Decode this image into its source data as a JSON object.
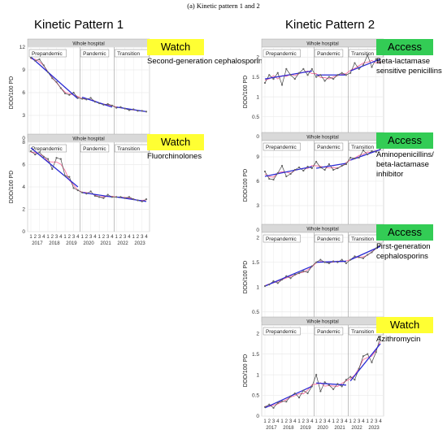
{
  "figure": {
    "caption": "(a) Kinetic pattern 1 and 2",
    "columns": [
      {
        "title": "Kinetic Pattern 1"
      },
      {
        "title": "Kinetic Pattern 2"
      }
    ]
  },
  "strip_label": "Whole hospital",
  "period_labels": [
    "Prepandemic",
    "Pandemic",
    "Transition"
  ],
  "quarter_labels": [
    "1",
    "2",
    "3",
    "4"
  ],
  "years": [
    "2017",
    "2018",
    "2019",
    "2020",
    "2021",
    "2022",
    "2023"
  ],
  "ylabel": "DDD/100 PD",
  "colors": {
    "watch": "#ffff33",
    "access": "#33cc55",
    "observed": "#444444",
    "points": "#666666",
    "smooth": "#ff6fa0",
    "fit": "#2a2ad4",
    "strip": "#d9d9d9",
    "grid": "#ebebeb"
  },
  "chart_data": [
    {
      "type": "line",
      "title": "Second-generation cephalosporins",
      "category": "Watch",
      "ylim": [
        0,
        12
      ],
      "yticks": [
        0,
        3,
        6,
        9,
        12
      ],
      "x_quarters": 28,
      "series": [
        {
          "values": [
            10.6,
            10.2,
            10.4,
            9.6,
            8.7,
            7.9,
            7.4,
            6.6,
            5.9,
            5.7,
            6.0,
            5.3,
            5.2,
            5.1,
            5.3,
            4.8,
            4.6,
            4.4,
            4.5,
            4.3,
            4.0,
            4.1,
            3.9,
            3.7,
            3.8,
            3.6,
            3.6,
            3.5
          ]
        }
      ],
      "fits": [
        {
          "from": 1,
          "to": 12,
          "start": 10.7,
          "end": 5.2
        },
        {
          "from": 13,
          "to": 20,
          "start": 5.4,
          "end": 4.1
        },
        {
          "from": 21,
          "to": 28,
          "start": 4.1,
          "end": 3.5
        }
      ]
    },
    {
      "type": "line",
      "title": "Fluorchinolones",
      "category": "Watch",
      "ylim": [
        0,
        8
      ],
      "yticks": [
        0,
        2,
        4,
        6,
        8
      ],
      "x_quarters": 28,
      "series": [
        {
          "values": [
            7.2,
            6.9,
            7.1,
            6.7,
            6.5,
            5.6,
            6.6,
            6.5,
            5.0,
            4.9,
            3.9,
            3.7,
            3.5,
            3.4,
            3.6,
            3.2,
            3.1,
            3.0,
            3.3,
            3.1,
            3.1,
            3.1,
            3.0,
            3.1,
            2.9,
            2.8,
            2.7,
            2.9
          ]
        }
      ],
      "fits": [
        {
          "from": 1,
          "to": 12,
          "start": 7.5,
          "end": 4.0
        },
        {
          "from": 13,
          "to": 20,
          "start": 3.5,
          "end": 3.1
        },
        {
          "from": 21,
          "to": 28,
          "start": 3.1,
          "end": 2.7
        }
      ]
    },
    {
      "type": "line",
      "title": "Beta-lactamase\nsensitive penicillins",
      "category": "Access",
      "ylim": [
        0,
        2.25
      ],
      "yticks": [
        0.0,
        0.5,
        1.0,
        1.5,
        2.0
      ],
      "x_quarters": 28,
      "series": [
        {
          "values": [
            1.35,
            1.55,
            1.45,
            1.6,
            1.3,
            1.7,
            1.55,
            1.45,
            1.6,
            1.7,
            1.55,
            1.7,
            1.5,
            1.55,
            1.4,
            1.5,
            1.45,
            1.55,
            1.6,
            1.55,
            1.6,
            1.85,
            1.7,
            1.8,
            2.05,
            1.75,
            1.95,
            1.85
          ]
        }
      ],
      "fits": [
        {
          "from": 1,
          "to": 12,
          "start": 1.45,
          "end": 1.65
        },
        {
          "from": 13,
          "to": 20,
          "start": 1.55,
          "end": 1.55
        },
        {
          "from": 21,
          "to": 28,
          "start": 1.65,
          "end": 1.95
        }
      ]
    },
    {
      "type": "line",
      "title": "Aminopenicillins/\nbeta-lactamase\ninhibitor",
      "category": "Access",
      "ylim": [
        0,
        11
      ],
      "yticks": [
        0,
        3,
        6,
        9
      ],
      "x_quarters": 28,
      "series": [
        {
          "values": [
            7.2,
            6.3,
            6.2,
            7.0,
            7.9,
            6.6,
            6.9,
            7.4,
            7.7,
            7.3,
            7.8,
            7.6,
            8.4,
            7.7,
            7.4,
            8.1,
            7.4,
            7.6,
            7.9,
            8.1,
            8.9,
            8.8,
            8.9,
            9.8,
            9.3,
            9.7,
            9.6,
            10.0
          ]
        }
      ],
      "fits": [
        {
          "from": 1,
          "to": 12,
          "start": 6.6,
          "end": 7.8
        },
        {
          "from": 13,
          "to": 20,
          "start": 7.6,
          "end": 8.2
        },
        {
          "from": 21,
          "to": 28,
          "start": 8.6,
          "end": 9.9
        }
      ]
    },
    {
      "type": "line",
      "title": "First-generation\ncephalosporins",
      "category": "Access",
      "ylim": [
        0.3,
        2.1
      ],
      "yticks": [
        0.5,
        1.0,
        1.5,
        2.0
      ],
      "x_quarters": 28,
      "series": [
        {
          "values": [
            1.02,
            1.05,
            1.12,
            1.08,
            1.15,
            1.22,
            1.18,
            1.25,
            1.28,
            1.32,
            1.3,
            1.42,
            1.5,
            1.55,
            1.5,
            1.48,
            1.52,
            1.5,
            1.55,
            1.48,
            1.55,
            1.62,
            1.6,
            1.58,
            1.65,
            1.7,
            1.78,
            1.85
          ]
        }
      ],
      "fits": [
        {
          "from": 1,
          "to": 12,
          "start": 1.02,
          "end": 1.42
        },
        {
          "from": 13,
          "to": 20,
          "start": 1.5,
          "end": 1.52
        },
        {
          "from": 21,
          "to": 28,
          "start": 1.55,
          "end": 1.82
        }
      ]
    },
    {
      "type": "line",
      "title": "Azithromycin",
      "category": "Watch",
      "ylim": [
        0,
        2.2
      ],
      "yticks": [
        0.0,
        0.5,
        1.0,
        1.5,
        2.0
      ],
      "x_quarters": 28,
      "series": [
        {
          "values": [
            0.22,
            0.28,
            0.2,
            0.32,
            0.36,
            0.35,
            0.48,
            0.55,
            0.45,
            0.62,
            0.55,
            0.72,
            1.0,
            0.6,
            0.82,
            0.75,
            0.65,
            0.78,
            0.72,
            0.88,
            0.95,
            0.88,
            1.15,
            1.45,
            1.5,
            1.3,
            1.55,
            1.92
          ]
        }
      ],
      "fits": [
        {
          "from": 1,
          "to": 12,
          "start": 0.2,
          "end": 0.72
        },
        {
          "from": 13,
          "to": 20,
          "start": 0.8,
          "end": 0.75
        },
        {
          "from": 21,
          "to": 28,
          "start": 0.85,
          "end": 1.75
        }
      ]
    }
  ]
}
